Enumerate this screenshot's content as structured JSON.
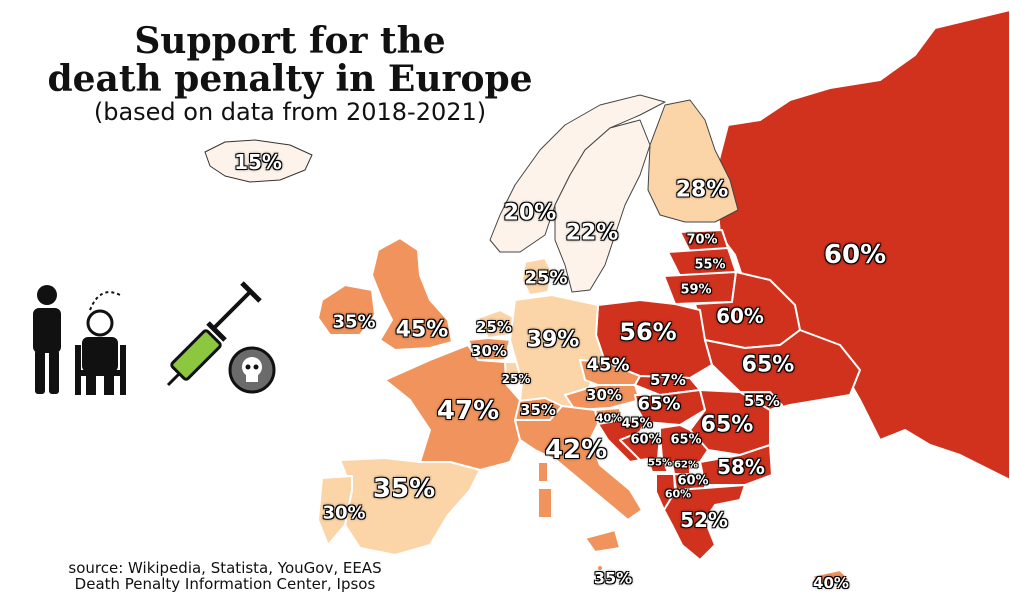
{
  "title_line1": "Support for the",
  "title_line2": "death penalty in Europe",
  "subtitle": "(based on data from 2018-2021)",
  "source_line1": "source: Wikipedia, Statista, YouGov, EEAS",
  "source_line2": "Death Penalty Information Center, Ipsos",
  "colors": {
    "very_low": "#fdf3ea",
    "low": "#fbd4a8",
    "mid": "#f0935c",
    "high": "#d0321e",
    "border": "#ffffff"
  },
  "icons": [
    "person-icon",
    "electric-chair-icon",
    "syringe-icon",
    "skull-icon"
  ],
  "labels": {
    "iceland": "15%",
    "norway": "20%",
    "sweden": "22%",
    "finland": "28%",
    "russia": "60%",
    "estonia": "70%",
    "latvia": "55%",
    "lithuania": "59%",
    "belarus": "60%",
    "poland": "56%",
    "ukraine": "65%",
    "denmark": "25%",
    "ireland": "35%",
    "uk": "45%",
    "netherlands": "25%",
    "belgium": "30%",
    "luxembourg": "25%",
    "germany": "39%",
    "czechia": "45%",
    "slovakia": "57%",
    "austria": "30%",
    "hungary": "65%",
    "romania": "65%",
    "moldova": "55%",
    "switzerland": "35%",
    "slovenia": "40%",
    "croatia": "45%",
    "bosnia": "60%",
    "serbia": "65%",
    "montenegro": "55%",
    "kosovo": "62%",
    "bulgaria": "58%",
    "north_macedonia": "60%",
    "albania": "60%",
    "greece": "52%",
    "france": "47%",
    "italy": "42%",
    "spain": "35%",
    "portugal": "30%",
    "malta": "35%",
    "cyprus": "40%"
  }
}
